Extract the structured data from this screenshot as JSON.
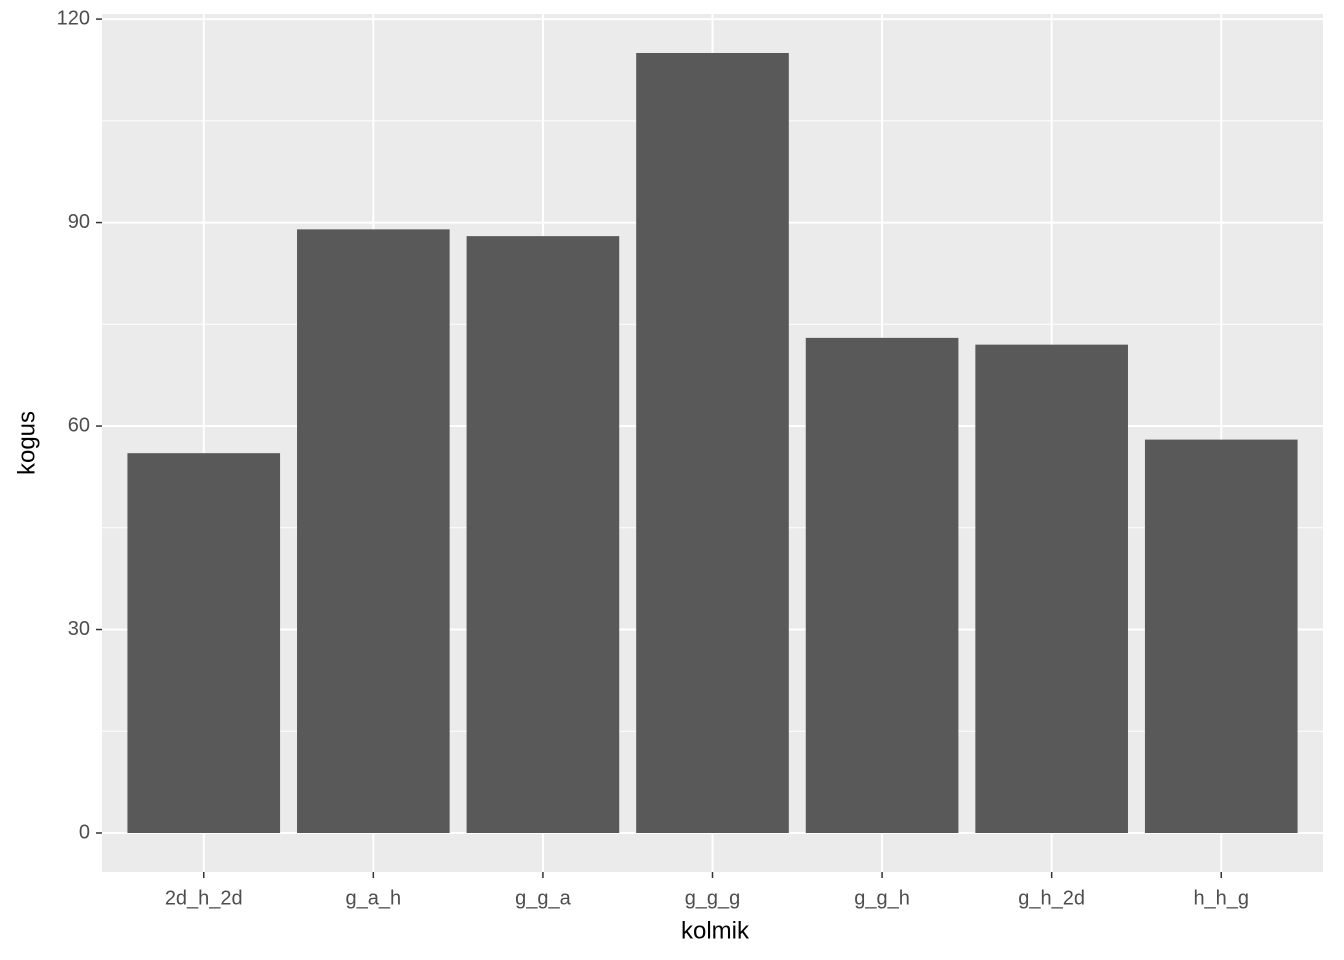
{
  "chart_data": {
    "type": "bar",
    "x_label": "kolmik",
    "y_label": "kogus",
    "categories": [
      "2d_h_2d",
      "g_a_h",
      "g_g_a",
      "g_g_g",
      "g_g_h",
      "g_h_2d",
      "h_h_g"
    ],
    "values": [
      56,
      89,
      88,
      115,
      73,
      72,
      58
    ],
    "color": "#595959",
    "ylim": [
      -5.75,
      120.75
    ],
    "yticks": [
      0,
      30,
      60,
      90,
      120
    ],
    "grid": true,
    "minor_grid": true
  }
}
